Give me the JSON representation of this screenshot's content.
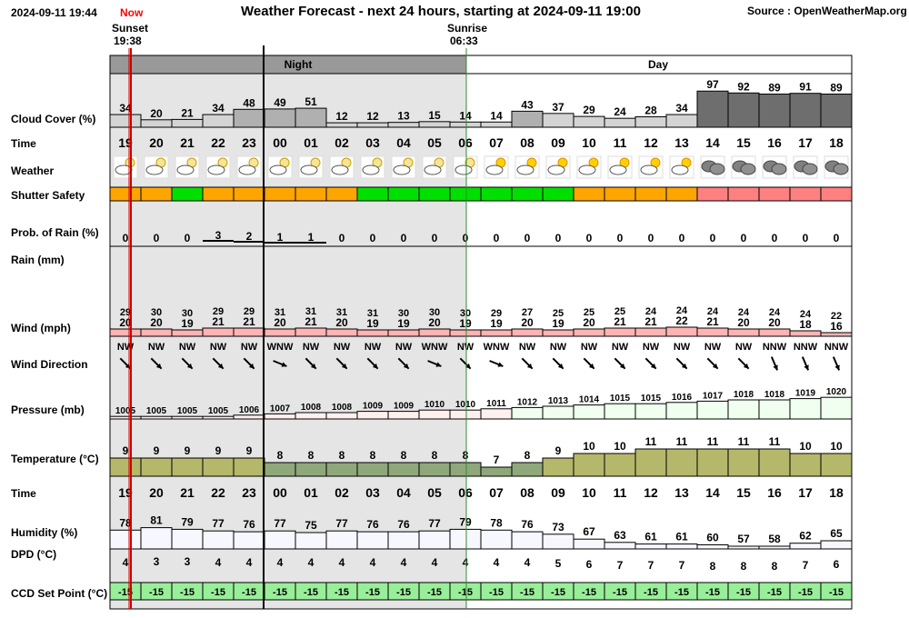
{
  "header": {
    "timestamp": "2024-09-11 19:44",
    "now_label": "Now",
    "title": "Weather Forecast - next 24 hours, starting at 2024-09-11 19:00",
    "source": "Source : OpenWeatherMap.org",
    "sunset_label": "Sunset",
    "sunset_time": "19:38",
    "sunrise_label": "Sunrise",
    "sunrise_time": "06:33",
    "night_label": "Night",
    "day_label": "Day"
  },
  "row_labels": {
    "cloud": "Cloud Cover (%)",
    "time": "Time",
    "weather": "Weather",
    "shutter": "Shutter Safety",
    "rain_prob": "Prob. of Rain (%)",
    "rain": "Rain (mm)",
    "wind": "Wind (mph)",
    "wind_dir": "Wind Direction",
    "pressure": "Pressure (mb)",
    "temperature": "Temperature (°C)",
    "time2": "Time",
    "humidity": "Humidity (%)",
    "dpd": "DPD (°C)",
    "ccd": "CCD Set Point (°C)"
  },
  "colors": {
    "night_band": "#999999",
    "night_bg": "#e5e5e5",
    "now_line": "#cc0000",
    "sunrise_line": "#2e8b2e",
    "shutter_orange": "#ffa500",
    "shutter_green": "#00e000",
    "shutter_red": "#ff8080",
    "wind_fill": "#ffb3b3",
    "ccd_fill": "#99ee99"
  },
  "chart_data": {
    "type": "table",
    "hours": [
      "19",
      "20",
      "21",
      "22",
      "23",
      "00",
      "01",
      "02",
      "03",
      "04",
      "05",
      "06",
      "07",
      "08",
      "09",
      "10",
      "11",
      "12",
      "13",
      "14",
      "15",
      "16",
      "17",
      "18"
    ],
    "cloud_cover": [
      34,
      20,
      21,
      34,
      48,
      49,
      51,
      12,
      12,
      13,
      15,
      14,
      14,
      43,
      37,
      29,
      24,
      28,
      34,
      97,
      92,
      89,
      91,
      89
    ],
    "weather_icons": [
      "partly-cloudy-moon-icon",
      "partly-cloudy-moon-icon",
      "partly-cloudy-moon-icon",
      "partly-cloudy-moon-icon",
      "partly-cloudy-moon-icon",
      "partly-cloudy-moon-icon",
      "partly-cloudy-moon-icon",
      "partly-cloudy-moon-icon",
      "partly-cloudy-moon-icon",
      "partly-cloudy-moon-icon",
      "partly-cloudy-moon-icon",
      "partly-cloudy-moon-icon",
      "partly-cloudy-sun-icon",
      "partly-cloudy-sun-icon",
      "partly-cloudy-sun-icon",
      "partly-cloudy-sun-icon",
      "partly-cloudy-sun-icon",
      "partly-cloudy-sun-icon",
      "partly-cloudy-sun-icon",
      "overcast-icon",
      "overcast-icon",
      "overcast-icon",
      "overcast-icon",
      "overcast-icon"
    ],
    "shutter_safety": [
      "orange",
      "orange",
      "green",
      "orange",
      "orange",
      "orange",
      "orange",
      "orange",
      "green",
      "green",
      "green",
      "green",
      "green",
      "green",
      "green",
      "orange",
      "orange",
      "orange",
      "orange",
      "red",
      "red",
      "red",
      "red",
      "red"
    ],
    "rain_probability": [
      0,
      0,
      0,
      3,
      2,
      1,
      1,
      0,
      0,
      0,
      0,
      0,
      0,
      0,
      0,
      0,
      0,
      0,
      0,
      0,
      0,
      0,
      0,
      0
    ],
    "rain_mm": [
      0,
      0,
      0,
      0,
      0,
      0,
      0,
      0,
      0,
      0,
      0,
      0,
      0,
      0,
      0,
      0,
      0,
      0,
      0,
      0,
      0,
      0,
      0,
      0
    ],
    "wind_gust": [
      29,
      30,
      30,
      29,
      29,
      31,
      31,
      31,
      31,
      30,
      30,
      30,
      29,
      27,
      25,
      25,
      25,
      24,
      24,
      24,
      24,
      24,
      24,
      22
    ],
    "wind_speed": [
      20,
      20,
      19,
      21,
      21,
      20,
      21,
      20,
      19,
      19,
      20,
      19,
      19,
      20,
      19,
      20,
      21,
      21,
      22,
      21,
      20,
      20,
      18,
      16
    ],
    "wind_direction": [
      "NW",
      "NW",
      "NW",
      "NW",
      "NW",
      "WNW",
      "NW",
      "NW",
      "NW",
      "NW",
      "WNW",
      "NW",
      "WNW",
      "NW",
      "NW",
      "NW",
      "NW",
      "NW",
      "NW",
      "NW",
      "NW",
      "NNW",
      "NNW",
      "NNW"
    ],
    "wind_bearing_deg": [
      315,
      315,
      315,
      315,
      315,
      292,
      315,
      315,
      315,
      315,
      292,
      315,
      292,
      315,
      315,
      315,
      315,
      315,
      315,
      315,
      315,
      337,
      337,
      337
    ],
    "pressure": [
      1005,
      1005,
      1005,
      1005,
      1006,
      1007,
      1008,
      1008,
      1009,
      1009,
      1010,
      1010,
      1011,
      1012,
      1013,
      1014,
      1015,
      1015,
      1016,
      1017,
      1018,
      1018,
      1019,
      1020
    ],
    "temperature": [
      9,
      9,
      9,
      9,
      9,
      8,
      8,
      8,
      8,
      8,
      8,
      8,
      7,
      8,
      9,
      10,
      10,
      11,
      11,
      11,
      11,
      11,
      10,
      10
    ],
    "humidity": [
      78,
      81,
      79,
      77,
      76,
      77,
      75,
      77,
      76,
      76,
      77,
      79,
      78,
      76,
      73,
      67,
      63,
      61,
      61,
      60,
      57,
      58,
      62,
      65
    ],
    "dpd": [
      4,
      3,
      3,
      4,
      4,
      4,
      4,
      4,
      4,
      4,
      4,
      4,
      4,
      4,
      5,
      6,
      7,
      7,
      7,
      8,
      8,
      8,
      7,
      6
    ],
    "ccd_set_point": [
      -15,
      -15,
      -15,
      -15,
      -15,
      -15,
      -15,
      -15,
      -15,
      -15,
      -15,
      -15,
      -15,
      -15,
      -15,
      -15,
      -15,
      -15,
      -15,
      -15,
      -15,
      -15,
      -15,
      -15
    ]
  }
}
